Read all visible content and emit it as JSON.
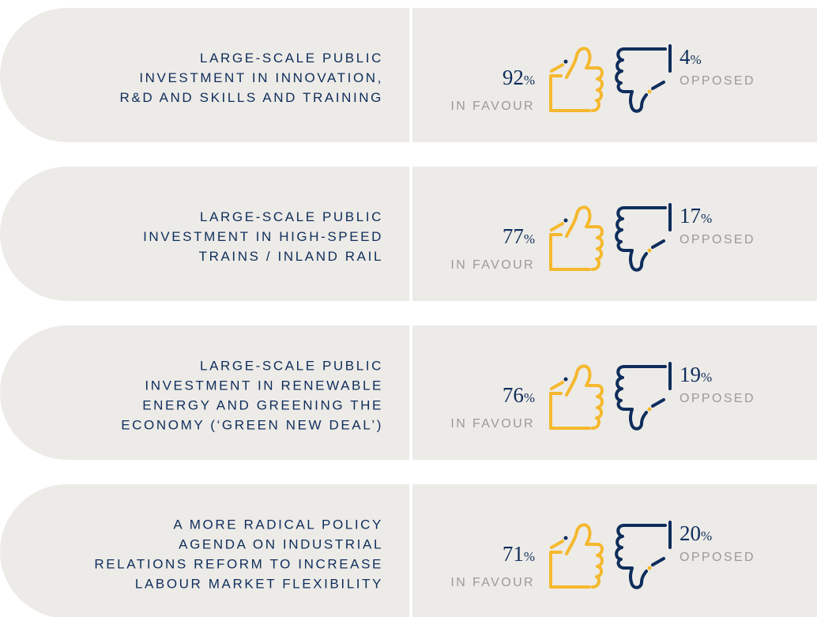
{
  "rows": [
    {
      "label": [
        "LARGE-SCALE PUBLIC",
        "INVESTMENT IN INNOVATION,",
        "R&D AND SKILLS AND TRAINING"
      ],
      "in_favour": {
        "value": 92,
        "unit": "%",
        "label": "IN FAVOUR"
      },
      "opposed": {
        "value": 4,
        "unit": "%",
        "label": "OPPOSED"
      }
    },
    {
      "label": [
        "LARGE-SCALE PUBLIC",
        "INVESTMENT IN HIGH-SPEED",
        "TRAINS / INLAND RAIL"
      ],
      "in_favour": {
        "value": 77,
        "unit": "%",
        "label": "IN FAVOUR"
      },
      "opposed": {
        "value": 17,
        "unit": "%",
        "label": "OPPOSED"
      }
    },
    {
      "label": [
        "LARGE-SCALE PUBLIC",
        "INVESTMENT IN RENEWABLE",
        "ENERGY AND GREENING THE",
        "ECONOMY (‘GREEN NEW DEAL’)"
      ],
      "in_favour": {
        "value": 76,
        "unit": "%",
        "label": "IN FAVOUR"
      },
      "opposed": {
        "value": 19,
        "unit": "%",
        "label": "OPPOSED"
      }
    },
    {
      "label": [
        "A MORE RADICAL POLICY",
        "AGENDA ON INDUSTRIAL",
        "RELATIONS REFORM TO INCREASE",
        "LABOUR MARKET FLEXIBILITY"
      ],
      "in_favour": {
        "value": 71,
        "unit": "%",
        "label": "IN FAVOUR"
      },
      "opposed": {
        "value": 20,
        "unit": "%",
        "label": "OPPOSED"
      }
    }
  ]
}
